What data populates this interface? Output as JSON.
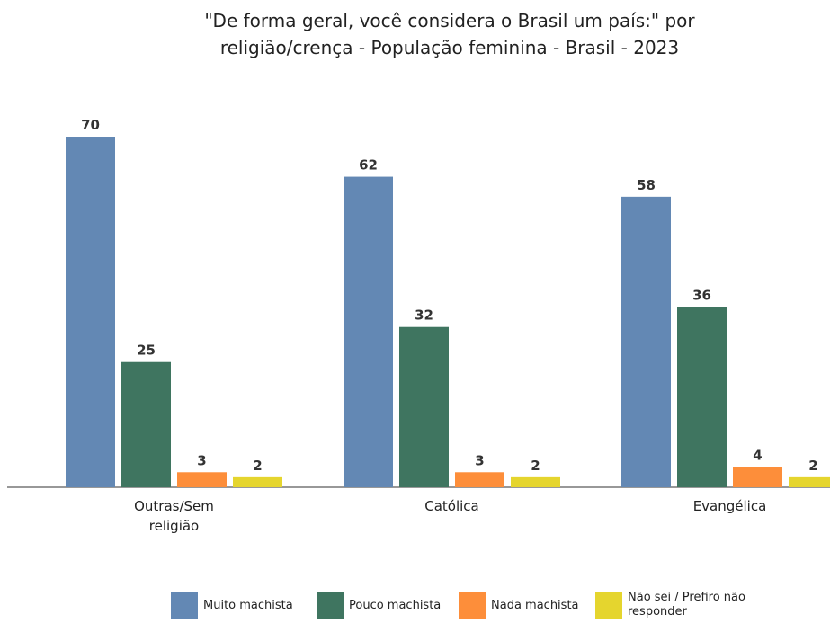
{
  "chart_data": {
    "type": "bar",
    "title": "\"De forma geral, você considera o Brasil um país:\" por religião/crença - População feminina - Brasil - 2023",
    "categories": [
      "Outras/Sem religião",
      "Católica",
      "Evangélica"
    ],
    "series": [
      {
        "name": "Muito machista",
        "color": "#6388b4",
        "values": [
          70,
          62,
          58
        ]
      },
      {
        "name": "Pouco machista",
        "color": "#3f7560",
        "values": [
          25,
          32,
          36
        ]
      },
      {
        "name": "Nada machista",
        "color": "#fd8e3a",
        "values": [
          3,
          3,
          4
        ]
      },
      {
        "name": "Não sei / Prefiro não responder",
        "color": "#e5d52e",
        "values": [
          2,
          2,
          2
        ]
      }
    ]
  }
}
